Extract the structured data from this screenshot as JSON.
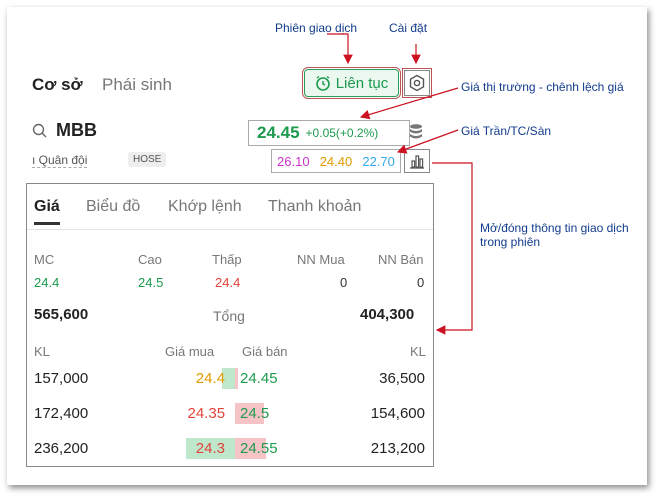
{
  "header": {
    "tab_base": "Cơ sở",
    "tab_derivative": "Phái sinh",
    "session_label": "Liên tục"
  },
  "ticker": {
    "symbol": "MBB",
    "company": "ı Quân đội",
    "exchange": "HOSE",
    "price": "24.45",
    "change": "+0.05(+0.2%)",
    "ceiling": "26.10",
    "reference": "24.40",
    "floor": "22.70"
  },
  "panel": {
    "tabs": [
      "Giá",
      "Biểu đồ",
      "Khớp lệnh",
      "Thanh khoản"
    ],
    "stats": {
      "headers": [
        "MC",
        "Cao",
        "Thấp",
        "NN Mua",
        "NN Bán"
      ],
      "values": [
        "24.4",
        "24.5",
        "24.4",
        "0",
        "0"
      ]
    },
    "totals": {
      "buy": "565,600",
      "label": "Tổng",
      "sell": "404,300"
    },
    "orderbook": {
      "headers": [
        "KL",
        "Giá mua",
        "Giá bán",
        "KL"
      ],
      "rows": [
        {
          "bid_vol": "157,000",
          "bid": "24.4",
          "ask": "24.45",
          "ask_vol": "36,500",
          "bid_fill": 0.25,
          "ask_fill": 0.05
        },
        {
          "bid_vol": "172,400",
          "bid": "24.35",
          "ask": "24.5",
          "ask_vol": "154,600",
          "bid_fill": 0.0,
          "ask_fill": 0.55
        },
        {
          "bid_vol": "236,200",
          "bid": "24.3",
          "ask": "24.55",
          "ask_vol": "213,200",
          "bid_fill": 0.95,
          "ask_fill": 0.6
        }
      ]
    }
  },
  "annotations": {
    "session": "Phiên giao dịch",
    "settings": "Cài đặt",
    "market_price": "Giá thị trường - chênh lệch giá",
    "ref_prices": "Giá Trần/TC/Sàn",
    "toggle_line1": "Mở/đóng thông tin giao dịch",
    "toggle_line2": "trong phiên"
  },
  "colors": {
    "up": "#1d9a4e",
    "down": "#e0443a",
    "reference": "#e09a00",
    "ceiling": "#cc33cc",
    "floor": "#33aaee",
    "annotation": "#123c8c",
    "arrow": "#cc1122"
  }
}
